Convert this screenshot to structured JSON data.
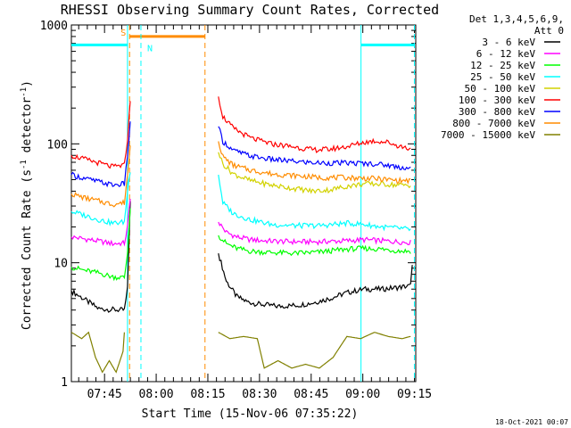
{
  "chart_data": {
    "type": "line",
    "title": "RHESSI Observing Summary Count Rates, Corrected",
    "xlabel": "Start Time (15-Nov-06 07:35:22)",
    "ylabel_main": "Corrected Count Rate (s",
    "ylabel_sup1": "-1",
    "ylabel_mid": " detector",
    "ylabel_sup2": "-1",
    "ylabel_end": ")",
    "footer": "18-Oct-2021 00:07",
    "x_unit": "minutes since 07:35:22",
    "xlim": [
      0,
      100
    ],
    "ylim": [
      1,
      1000
    ],
    "yscale": "log",
    "x_ticks": [
      {
        "label": "07:45",
        "value": 9.63
      },
      {
        "label": "08:00",
        "value": 24.63
      },
      {
        "label": "08:15",
        "value": 39.63
      },
      {
        "label": "08:30",
        "value": 54.63
      },
      {
        "label": "08:45",
        "value": 69.63
      },
      {
        "label": "09:00",
        "value": 84.63
      },
      {
        "label": "09:15",
        "value": 99.63
      }
    ],
    "y_ticks": [
      {
        "label": "1",
        "value": 1
      },
      {
        "label": "10",
        "value": 10
      },
      {
        "label": "100",
        "value": 100
      },
      {
        "label": "1000",
        "value": 1000
      }
    ],
    "legend": {
      "header1": "Det 1,3,4,5,6,9,",
      "header2": "Att 0",
      "placement": "right"
    },
    "series": [
      {
        "name": "3 - 6 keV",
        "color": "#000000",
        "points": [
          [
            0,
            5.8
          ],
          [
            8,
            4.1
          ],
          [
            14,
            4.0
          ],
          [
            15.4,
            4.0
          ],
          [
            16.3,
            6
          ],
          [
            17.1,
            34
          ],
          [
            38.8,
            null
          ],
          [
            42.7,
            12
          ],
          [
            45,
            7
          ],
          [
            48,
            5.2
          ],
          [
            51,
            4.7
          ],
          [
            54,
            4.5
          ],
          [
            60,
            4.3
          ],
          [
            66,
            4.4
          ],
          [
            70,
            4.6
          ],
          [
            75,
            5.0
          ],
          [
            80,
            5.6
          ],
          [
            85,
            6.0
          ],
          [
            90,
            6.0
          ],
          [
            95,
            6.2
          ],
          [
            98.5,
            6.4
          ],
          [
            99,
            10
          ]
        ]
      },
      {
        "name": "6 - 12 keV",
        "color": "#ff00ff",
        "points": [
          [
            0,
            16.5
          ],
          [
            6,
            15.5
          ],
          [
            12,
            14.5
          ],
          [
            15.4,
            14.6
          ],
          [
            16.3,
            20
          ],
          [
            17.1,
            34
          ],
          [
            38.8,
            null
          ],
          [
            42.7,
            22
          ],
          [
            45,
            18
          ],
          [
            48,
            16.5
          ],
          [
            52,
            15.6
          ],
          [
            58,
            15.2
          ],
          [
            65,
            15.0
          ],
          [
            72,
            15.0
          ],
          [
            80,
            15.3
          ],
          [
            85,
            15.6
          ],
          [
            90,
            15.3
          ],
          [
            95,
            15.0
          ],
          [
            98.5,
            14.8
          ]
        ]
      },
      {
        "name": "12 - 25 keV",
        "color": "#00ff00",
        "points": [
          [
            0,
            9.2
          ],
          [
            4,
            8.6
          ],
          [
            8,
            8.2
          ],
          [
            12,
            7.6
          ],
          [
            15.4,
            7.5
          ],
          [
            16.3,
            12
          ],
          [
            17.1,
            30
          ],
          [
            38.8,
            null
          ],
          [
            42.7,
            17
          ],
          [
            45,
            14.5
          ],
          [
            48,
            13.2
          ],
          [
            52,
            12.5
          ],
          [
            58,
            12.2
          ],
          [
            65,
            12.0
          ],
          [
            72,
            12.3
          ],
          [
            80,
            13.0
          ],
          [
            85,
            13.2
          ],
          [
            90,
            13.0
          ],
          [
            95,
            12.6
          ],
          [
            98.5,
            12.5
          ]
        ]
      },
      {
        "name": "25 - 50 keV",
        "color": "#00ffff",
        "points": [
          [
            0,
            27
          ],
          [
            4,
            25
          ],
          [
            8,
            23
          ],
          [
            12,
            21.5
          ],
          [
            15.4,
            22
          ],
          [
            16.3,
            40
          ],
          [
            17.1,
            60
          ],
          [
            38.8,
            null
          ],
          [
            42.7,
            55
          ],
          [
            44,
            32
          ],
          [
            47,
            26
          ],
          [
            52,
            23
          ],
          [
            58,
            21
          ],
          [
            65,
            20.5
          ],
          [
            72,
            20.5
          ],
          [
            80,
            21.5
          ],
          [
            85,
            21
          ],
          [
            90,
            20
          ],
          [
            95,
            19.5
          ],
          [
            98.5,
            19
          ]
        ]
      },
      {
        "name": "50 - 100 keV",
        "color": "#d2d200",
        "points": [
          [
            38.8,
            null
          ],
          [
            42.7,
            85
          ],
          [
            44,
            68
          ],
          [
            47,
            56
          ],
          [
            52,
            49
          ],
          [
            58,
            45
          ],
          [
            65,
            42
          ],
          [
            70,
            40
          ],
          [
            75,
            41
          ],
          [
            80,
            44
          ],
          [
            85,
            46
          ],
          [
            90,
            46
          ],
          [
            95,
            45
          ],
          [
            98.5,
            45
          ]
        ]
      },
      {
        "name": "100 - 300 keV",
        "color": "#ff0000",
        "points": [
          [
            0,
            80
          ],
          [
            4,
            74
          ],
          [
            8,
            69
          ],
          [
            12,
            64
          ],
          [
            15.4,
            66
          ],
          [
            16.3,
            110
          ],
          [
            17.1,
            230
          ],
          [
            38.8,
            null
          ],
          [
            42.7,
            250
          ],
          [
            44,
            170
          ],
          [
            47,
            135
          ],
          [
            52,
            112
          ],
          [
            58,
            100
          ],
          [
            65,
            94
          ],
          [
            70,
            89
          ],
          [
            75,
            90
          ],
          [
            80,
            95
          ],
          [
            85,
            103
          ],
          [
            88,
            106
          ],
          [
            92,
            103
          ],
          [
            95,
            96
          ],
          [
            98.5,
            91
          ]
        ]
      },
      {
        "name": "300 - 800 keV",
        "color": "#0000ff",
        "points": [
          [
            0,
            55
          ],
          [
            4,
            51
          ],
          [
            8,
            48
          ],
          [
            12,
            45
          ],
          [
            15.4,
            46
          ],
          [
            16.3,
            80
          ],
          [
            17.1,
            150
          ],
          [
            38.8,
            null
          ],
          [
            42.7,
            140
          ],
          [
            44,
            105
          ],
          [
            47,
            88
          ],
          [
            52,
            79
          ],
          [
            58,
            74
          ],
          [
            65,
            71
          ],
          [
            72,
            69
          ],
          [
            80,
            69
          ],
          [
            88,
            68
          ],
          [
            92,
            66
          ],
          [
            95,
            64
          ],
          [
            98.5,
            62
          ]
        ]
      },
      {
        "name": "800 - 7000 keV",
        "color": "#ff8c00",
        "points": [
          [
            0,
            38
          ],
          [
            4,
            35
          ],
          [
            8,
            33
          ],
          [
            12,
            31
          ],
          [
            15.4,
            32
          ],
          [
            16.3,
            55
          ],
          [
            17.1,
            95
          ],
          [
            38.8,
            null
          ],
          [
            42.7,
            105
          ],
          [
            44,
            78
          ],
          [
            47,
            66
          ],
          [
            52,
            60
          ],
          [
            58,
            56
          ],
          [
            65,
            54
          ],
          [
            72,
            52
          ],
          [
            80,
            52
          ],
          [
            88,
            51
          ],
          [
            92,
            50
          ],
          [
            95,
            49
          ],
          [
            98.5,
            49
          ]
        ]
      },
      {
        "name": "7000 - 15000 keV",
        "color": "#808000",
        "points": [
          [
            0,
            2.6
          ],
          [
            3,
            2.3
          ],
          [
            5,
            2.6
          ],
          [
            7,
            1.6
          ],
          [
            9,
            1.2
          ],
          [
            11,
            1.5
          ],
          [
            13,
            1.2
          ],
          [
            15,
            1.8
          ],
          [
            15.4,
            2.6
          ],
          [
            16.3,
            null
          ],
          [
            38.8,
            null
          ],
          [
            42.7,
            2.6
          ],
          [
            46,
            2.3
          ],
          [
            50,
            2.4
          ],
          [
            54,
            2.3
          ],
          [
            56,
            1.3
          ],
          [
            60,
            1.5
          ],
          [
            64,
            1.3
          ],
          [
            68,
            1.4
          ],
          [
            72,
            1.3
          ],
          [
            76,
            1.6
          ],
          [
            80,
            2.4
          ],
          [
            84,
            2.3
          ],
          [
            88,
            2.6
          ],
          [
            92,
            2.4
          ],
          [
            96,
            2.3
          ],
          [
            98.5,
            2.4
          ]
        ]
      }
    ],
    "intervals": {
      "night": {
        "label": "N",
        "color": "#00ffff",
        "vlines": [
          16.3,
          20.2
        ],
        "dash_lines": [
          20.2
        ],
        "solid_lines": [
          16.3
        ],
        "bars": [
          [
            0,
            16.3
          ],
          [
            84.1,
            99.6
          ]
        ],
        "bar_level": 680
      },
      "saa": {
        "label": "S",
        "color": "#ff8c00",
        "vlines": [
          16.9,
          38.8
        ],
        "bar": [
          16.9,
          38.8
        ],
        "bar_level": 800
      },
      "extra_vlines": [
        {
          "x": 84.1,
          "color": "#00ffff",
          "style": "solid"
        },
        {
          "x": 99.6,
          "color": "#00ffff",
          "style": "dash"
        }
      ]
    }
  }
}
